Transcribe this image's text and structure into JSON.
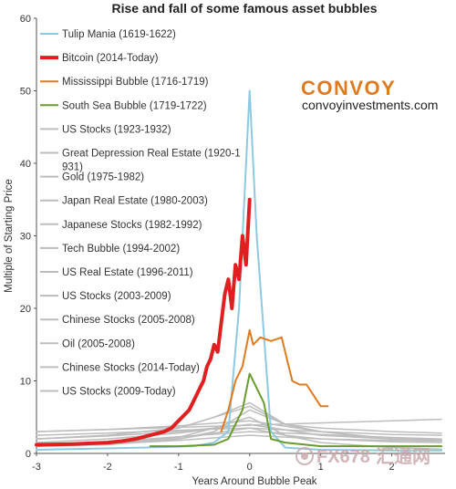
{
  "chart_data": {
    "type": "line",
    "title": "Rise and fall of some famous asset bubbles",
    "xlabel": "Years Around Bubble Peak",
    "ylabel": "Multiple of Starting Price",
    "xlim": [
      -3,
      2.75
    ],
    "ylim": [
      0,
      60
    ],
    "xticks": [
      -3,
      -2,
      -1,
      0,
      1,
      2
    ],
    "yticks": [
      0,
      10,
      20,
      30,
      40,
      50,
      60
    ],
    "grid": false,
    "legend_position": "top-left",
    "series": [
      {
        "name": "Tulip Mania (1619-1622)",
        "color": "#8ec9e2",
        "width": 2,
        "x": [
          -3,
          -1.5,
          -0.8,
          -0.5,
          -0.3,
          -0.15,
          0,
          0.1,
          0.3,
          0.5,
          1,
          2,
          2.7
        ],
        "y": [
          0.5,
          0.8,
          1,
          1.5,
          3,
          20,
          50,
          30,
          3,
          0.8,
          0.5,
          0.4,
          0.4
        ]
      },
      {
        "name": "Bitcoin (2014-Today)",
        "color": "#e02020",
        "width": 4,
        "x": [
          -3,
          -2.5,
          -2,
          -1.8,
          -1.6,
          -1.4,
          -1.2,
          -1.1,
          -1.0,
          -0.95,
          -0.9,
          -0.85,
          -0.8,
          -0.75,
          -0.7,
          -0.65,
          -0.6,
          -0.55,
          -0.5,
          -0.45,
          -0.4,
          -0.35,
          -0.3,
          -0.25,
          -0.2,
          -0.15,
          -0.1,
          -0.05,
          0
        ],
        "y": [
          1.2,
          1.3,
          1.5,
          1.7,
          2,
          2.5,
          3,
          3.5,
          4.5,
          5,
          5.5,
          6,
          7,
          8,
          9,
          10,
          12,
          13,
          15,
          14,
          18,
          22,
          24,
          20,
          26,
          24,
          30,
          26,
          35
        ]
      },
      {
        "name": "Mississippi Bubble (1716-1719)",
        "color": "#e07a1f",
        "width": 2,
        "x": [
          -0.4,
          -0.3,
          -0.2,
          -0.1,
          0,
          0.05,
          0.15,
          0.3,
          0.45,
          0.55,
          0.6,
          0.7,
          0.8,
          0.9,
          1.0,
          1.1
        ],
        "y": [
          3,
          6,
          10,
          12,
          17,
          15,
          16,
          15.5,
          16,
          12,
          10,
          9.5,
          9.5,
          8,
          6.5,
          6.5
        ]
      },
      {
        "name": "South Sea Bubble (1719-1722)",
        "color": "#6b9a2e",
        "width": 2,
        "x": [
          -1.4,
          -1.0,
          -0.5,
          -0.3,
          -0.1,
          0,
          0.1,
          0.2,
          0.3,
          0.5,
          1,
          2.7
        ],
        "y": [
          1,
          1,
          1.2,
          2,
          6,
          11,
          9,
          7,
          2,
          1.5,
          1,
          1
        ]
      },
      {
        "name": "US Stocks (1923-1932)",
        "color": "#bdbdbd",
        "width": 1.5,
        "x": [
          -3,
          -2,
          -1,
          -0.5,
          0,
          0.5,
          1,
          2,
          2.7
        ],
        "y": [
          1,
          1.4,
          2.2,
          3.5,
          5,
          2.5,
          1.5,
          0.8,
          0.6
        ]
      },
      {
        "name": "Great Depression Real Estate (1920-1931)",
        "color": "#bdbdbd",
        "width": 1.5,
        "x": [
          -3,
          -2,
          -1,
          0,
          1,
          2,
          2.7
        ],
        "y": [
          1,
          1.3,
          1.8,
          2.5,
          2,
          1.6,
          1.5
        ]
      },
      {
        "name": "Gold (1975-1982)",
        "color": "#bdbdbd",
        "width": 1.5,
        "x": [
          -3,
          -2,
          -1,
          -0.5,
          0,
          0.5,
          1,
          2,
          2.7
        ],
        "y": [
          1,
          1.3,
          2,
          3,
          6,
          4,
          3.5,
          3,
          2.8
        ]
      },
      {
        "name": "Japan Real Estate (1980-2003)",
        "color": "#bdbdbd",
        "width": 1.5,
        "x": [
          -3,
          -2,
          -1,
          0,
          1,
          2,
          2.7
        ],
        "y": [
          1,
          1.6,
          2.3,
          3,
          2.6,
          2.2,
          2
        ]
      },
      {
        "name": "Japanese Stocks (1982-1992)",
        "color": "#bdbdbd",
        "width": 1.5,
        "x": [
          -3,
          -2,
          -1,
          0,
          1,
          2,
          2.7
        ],
        "y": [
          1.5,
          2,
          2.8,
          4,
          2.5,
          2,
          1.8
        ]
      },
      {
        "name": "Tech Bubble (1994-2002)",
        "color": "#bdbdbd",
        "width": 1.5,
        "x": [
          -3,
          -2,
          -1,
          -0.5,
          0,
          0.5,
          1,
          2,
          2.7
        ],
        "y": [
          2,
          2.5,
          3.5,
          5,
          7,
          4,
          3,
          2,
          1.8
        ]
      },
      {
        "name": "US Real Estate (1996-2011)",
        "color": "#bdbdbd",
        "width": 1.5,
        "x": [
          -3,
          -2,
          -1,
          0,
          1,
          2,
          2.7
        ],
        "y": [
          2.5,
          2.8,
          3.2,
          3.5,
          3,
          2.6,
          2.5
        ]
      },
      {
        "name": "US Stocks (2003-2009)",
        "color": "#bdbdbd",
        "width": 1.5,
        "x": [
          -3,
          -2,
          -1,
          0,
          1,
          2,
          2.7
        ],
        "y": [
          3,
          3.3,
          3.8,
          4.5,
          3,
          2,
          1.8
        ]
      },
      {
        "name": "Chinese Stocks (2005-2008)",
        "color": "#bdbdbd",
        "width": 1.5,
        "x": [
          -3,
          -2,
          -1,
          -0.5,
          0,
          0.5,
          1,
          2,
          2.7
        ],
        "y": [
          2,
          2.5,
          3.5,
          5,
          6.5,
          4,
          3,
          2,
          1.8
        ]
      },
      {
        "name": "Oil (2005-2008)",
        "color": "#bdbdbd",
        "width": 1.5,
        "x": [
          -3,
          -2,
          -1,
          0,
          1,
          2,
          2.7
        ],
        "y": [
          2,
          2.4,
          3,
          4,
          2.5,
          2,
          1.9
        ]
      },
      {
        "name": "Chinese Stocks (2014-Today)",
        "color": "#bdbdbd",
        "width": 1.5,
        "x": [
          -3,
          -2,
          -1,
          -0.5,
          0,
          0.5,
          1,
          2,
          2.7
        ],
        "y": [
          1,
          1.2,
          2,
          2.8,
          3.5,
          2.5,
          2,
          1.8,
          1.7
        ]
      },
      {
        "name": "US Stocks (2009-Today)",
        "color": "#bdbdbd",
        "width": 1.5,
        "x": [
          -3,
          -2,
          -1,
          0,
          1,
          2,
          2.7
        ],
        "y": [
          3,
          3.3,
          3.6,
          3.9,
          4.2,
          4.5,
          4.7
        ]
      }
    ]
  },
  "branding": {
    "logo_text": "CONVOY",
    "logo_color": "#e07a1f",
    "url": "convoyinvestments.com"
  },
  "watermark": {
    "text": "FX678",
    "cn_text": "汇通网",
    "color": "#c9a9ad"
  }
}
